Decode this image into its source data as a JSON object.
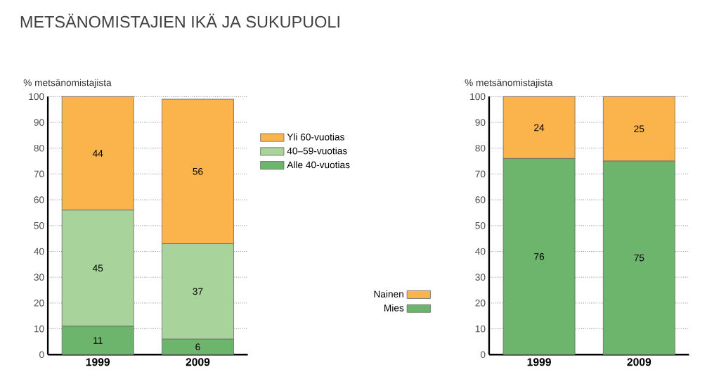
{
  "chart_data": [
    {
      "type": "bar",
      "title": "METSÄNOMISTAJIEN IKÄ JA SUKUPUOLI",
      "ylabel": "% metsänomistajista",
      "categories": [
        "1999",
        "2009"
      ],
      "stacked": true,
      "ylim": [
        0,
        100
      ],
      "yticks": [
        0,
        10,
        20,
        30,
        40,
        50,
        60,
        70,
        80,
        90,
        100
      ],
      "grid": "y",
      "legend": "right",
      "data_labels": true,
      "series": [
        {
          "name": "Alle 40-vuotias",
          "color": "#6db56d",
          "values": [
            11,
            6
          ]
        },
        {
          "name": "40–59-vuotias",
          "color": "#a8d49c",
          "values": [
            45,
            37
          ]
        },
        {
          "name": "Yli 60-vuotias",
          "color": "#fbb44c",
          "values": [
            44,
            56
          ]
        }
      ]
    },
    {
      "type": "bar",
      "ylabel": "% metsänomistajista",
      "categories": [
        "1999",
        "2009"
      ],
      "stacked": true,
      "ylim": [
        0,
        100
      ],
      "yticks": [
        0,
        10,
        20,
        30,
        40,
        50,
        60,
        70,
        80,
        90,
        100
      ],
      "grid": "y",
      "legend": "left",
      "data_labels": true,
      "series": [
        {
          "name": "Mies",
          "color": "#6db56d",
          "values": [
            76,
            75
          ]
        },
        {
          "name": "Nainen",
          "color": "#fbb44c",
          "values": [
            24,
            25
          ]
        }
      ]
    }
  ]
}
